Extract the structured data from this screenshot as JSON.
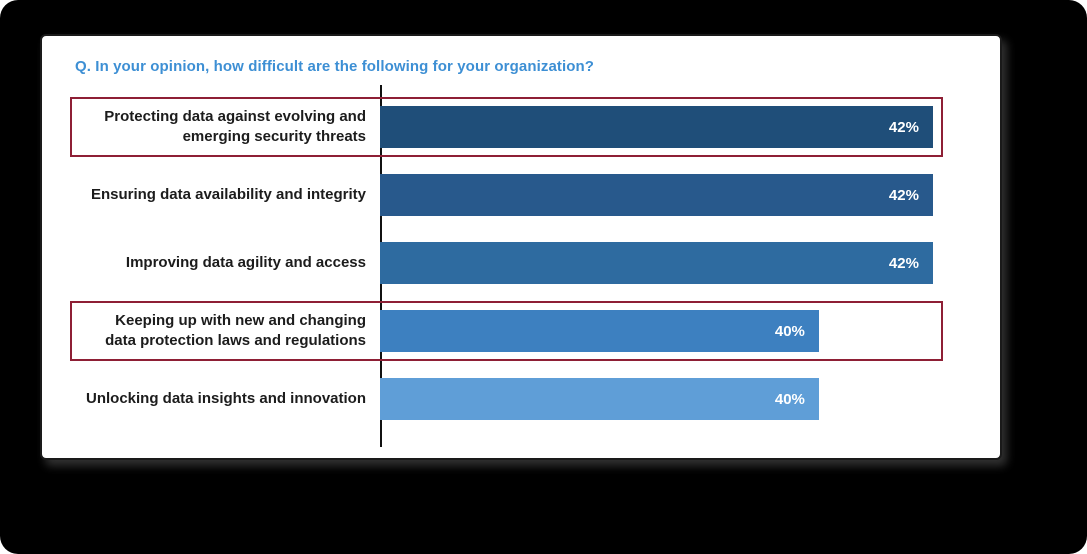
{
  "colors": {
    "title": "#3d8fd4",
    "axis": "#111111",
    "card_border": "#1a1a1a",
    "outer_background": "#000000",
    "highlight": "#8e1f35",
    "label_text": "#1c1c1c",
    "value_text": "#ffffff"
  },
  "chart_data": {
    "type": "bar",
    "orientation": "horizontal",
    "title": "Q. In your opinion, how difficult are the following for your organization?",
    "categories": [
      "Protecting data against evolving and emerging security threats",
      "Ensuring data availability and integrity",
      "Improving data agility and access",
      "Keeping up with new and changing data protection laws and regulations",
      "Unlocking data insights and innovation"
    ],
    "values": [
      42,
      42,
      42,
      40,
      40
    ],
    "value_labels": [
      "42%",
      "42%",
      "42%",
      "40%",
      "40%"
    ],
    "bar_colors": [
      "#1f4e79",
      "#28598c",
      "#2e6ba0",
      "#3d80c0",
      "#5f9ed7"
    ],
    "highlighted": [
      true,
      false,
      false,
      true,
      false
    ],
    "bar_width_pct": [
      96,
      96,
      96,
      76.2,
      76.2
    ],
    "xlabel": "",
    "ylabel": "",
    "xlim": [
      0,
      45
    ],
    "grid": false,
    "legend": "none"
  }
}
